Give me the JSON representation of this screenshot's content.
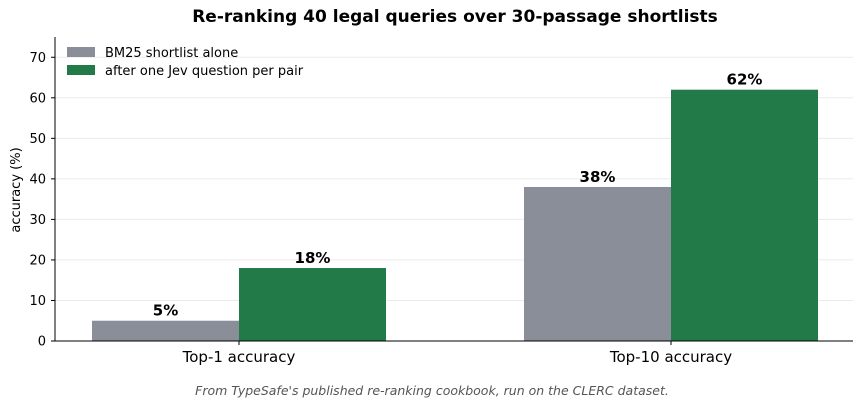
{
  "chart_data": {
    "type": "bar",
    "title": "Re-ranking 40 legal queries over 30-passage shortlists",
    "xlabel": "",
    "ylabel": "accuracy (%)",
    "ylim": [
      0,
      75
    ],
    "yticks": [
      0,
      10,
      20,
      30,
      40,
      50,
      60,
      70
    ],
    "grid": true,
    "legend_position": "top-left",
    "categories": [
      "Top-1 accuracy",
      "Top-10 accuracy"
    ],
    "series": [
      {
        "name": "BM25 shortlist alone",
        "color": "#898e99",
        "values": [
          5,
          38
        ],
        "labels": [
          "5%",
          "38%"
        ]
      },
      {
        "name": "after one Jev question per pair",
        "color": "#217a47",
        "values": [
          18,
          62
        ],
        "labels": [
          "18%",
          "62%"
        ]
      }
    ],
    "caption": "From TypeSafe's published re-ranking cookbook, run on the CLERC dataset."
  }
}
